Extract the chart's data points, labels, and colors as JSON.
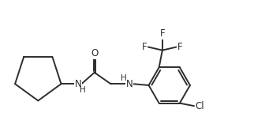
{
  "background": "#ffffff",
  "line_color": "#2d2d2d",
  "line_width": 1.4,
  "font_size_atom": 8.5,
  "font_size_h": 7.5,
  "xlim": [
    0,
    10
  ],
  "ylim": [
    0,
    5.2
  ]
}
